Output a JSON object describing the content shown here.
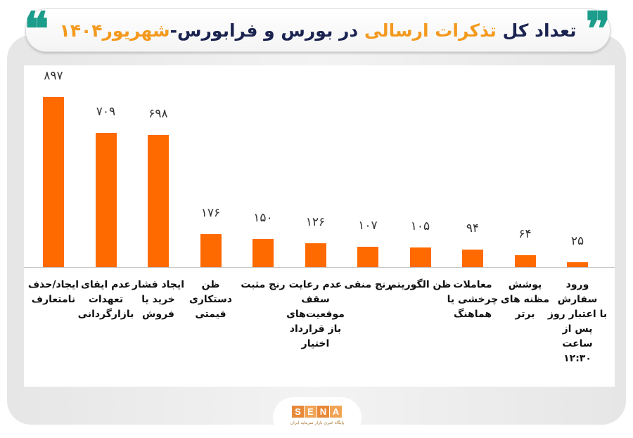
{
  "header": {
    "title_part1": "تعداد کل ",
    "title_highlight": "تذکرات ارسالی",
    "title_part2": " در بورس و فرابورس-",
    "title_month": "شهریور۱۴۰۴",
    "quote_open": "❞",
    "quote_close": "❝",
    "accent_color": "#1c9c8a",
    "highlight_color": "#f39a1e",
    "title_color": "#1b2350"
  },
  "chart_data": {
    "type": "bar",
    "title": "تعداد کل تذکرات ارسالی در بورس و فرابورس-شهریور۱۴۰۴",
    "xlabel": "",
    "ylabel": "",
    "grid": false,
    "legend": "none",
    "bar_color": "#ff6a00",
    "ylim": [
      0,
      1000
    ],
    "categories": [
      "ایجاد/حذف نامتعارف",
      "عدم ایفای تعهدات بازارگردانی",
      "ایجاد فشار خرید یا فروش",
      "ظن دستکاری قیمتی",
      "رنج مثبت",
      "عدم رعایت سقف موقعیت‌های باز قرارداد اختیار",
      "رنج منفی",
      "ظن الگوریتم",
      "معاملات چرخشی یا هماهنگ",
      "پوشش مظنه های برتر",
      "ورود سفارش با اعتبار روز پس از ساعت ۱۲:۳۰"
    ],
    "values": [
      897,
      709,
      698,
      176,
      150,
      126,
      107,
      105,
      94,
      64,
      25
    ],
    "value_labels": [
      "۸۹۷",
      "۷۰۹",
      "۶۹۸",
      "۱۷۶",
      "۱۵۰",
      "۱۲۶",
      "۱۰۷",
      "۱۰۵",
      "۹۴",
      "۶۴",
      "۲۵"
    ],
    "label_lines": [
      [
        "ایجاد/حذف",
        "نامتعارف"
      ],
      [
        "عدم ایفای",
        "تعهدات",
        "بازارگردانی"
      ],
      [
        "ایجاد فشار",
        "خرید یا",
        "فروش"
      ],
      [
        "ظن",
        "دستکاری",
        "قیمتی"
      ],
      [
        "رنج مثبت"
      ],
      [
        "عدم رعایت",
        "سقف",
        "موقعیت‌های",
        "باز قرارداد",
        "اختیار"
      ],
      [
        "رنج منفی"
      ],
      [
        "ظن الگوریتم"
      ],
      [
        "معاملات",
        "چرخشی یا",
        "هماهنگ"
      ],
      [
        "پوشش",
        "مظنه های",
        "برتر"
      ],
      [
        "ورود سفارش",
        "با اعتبار روز",
        "پس از ساعت",
        "۱۲:۳۰"
      ]
    ]
  },
  "footer": {
    "logo_letters": [
      "S",
      "E",
      "N",
      "A"
    ],
    "tagline": "پایگاه خبری بازار سرمایه ایران"
  }
}
